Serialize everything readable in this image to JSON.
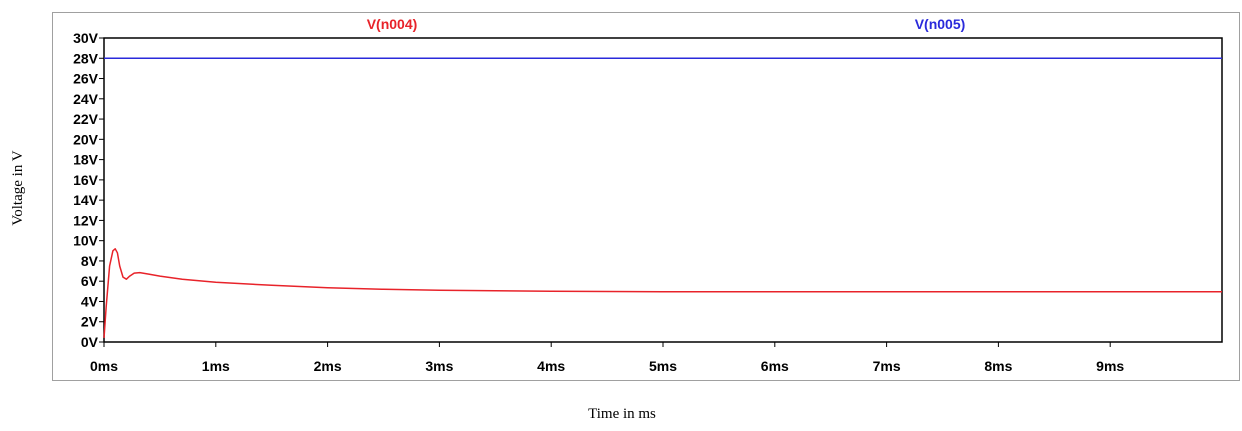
{
  "chart_data": {
    "type": "line",
    "xlabel": "Time in ms",
    "ylabel": "Voltage in V",
    "xlim": [
      0,
      10
    ],
    "ylim": [
      0,
      30
    ],
    "x_ticks": [
      {
        "value": 0,
        "label": "0ms"
      },
      {
        "value": 1,
        "label": "1ms"
      },
      {
        "value": 2,
        "label": "2ms"
      },
      {
        "value": 3,
        "label": "3ms"
      },
      {
        "value": 4,
        "label": "4ms"
      },
      {
        "value": 5,
        "label": "5ms"
      },
      {
        "value": 6,
        "label": "6ms"
      },
      {
        "value": 7,
        "label": "7ms"
      },
      {
        "value": 8,
        "label": "8ms"
      },
      {
        "value": 9,
        "label": "9ms"
      }
    ],
    "y_ticks": [
      {
        "value": 0,
        "label": "0V"
      },
      {
        "value": 2,
        "label": "2V"
      },
      {
        "value": 4,
        "label": "4V"
      },
      {
        "value": 6,
        "label": "6V"
      },
      {
        "value": 8,
        "label": "8V"
      },
      {
        "value": 10,
        "label": "10V"
      },
      {
        "value": 12,
        "label": "12V"
      },
      {
        "value": 14,
        "label": "14V"
      },
      {
        "value": 16,
        "label": "16V"
      },
      {
        "value": 18,
        "label": "18V"
      },
      {
        "value": 20,
        "label": "20V"
      },
      {
        "value": 22,
        "label": "22V"
      },
      {
        "value": 24,
        "label": "24V"
      },
      {
        "value": 26,
        "label": "26V"
      },
      {
        "value": 28,
        "label": "28V"
      },
      {
        "value": 30,
        "label": "30V"
      }
    ],
    "grid": false,
    "legend_placement": "top",
    "series": [
      {
        "name": "V(n004)",
        "color": "#e8232a",
        "x": [
          0,
          0.02,
          0.05,
          0.08,
          0.1,
          0.12,
          0.14,
          0.17,
          0.2,
          0.23,
          0.27,
          0.32,
          0.4,
          0.5,
          0.7,
          1.0,
          1.5,
          2.0,
          2.5,
          3.0,
          3.5,
          4.0,
          5.0,
          6.0,
          7.0,
          8.0,
          9.0,
          10.0
        ],
        "y": [
          0.4,
          3.5,
          7.5,
          9.0,
          9.2,
          8.8,
          7.5,
          6.4,
          6.2,
          6.5,
          6.8,
          6.85,
          6.7,
          6.5,
          6.2,
          5.9,
          5.6,
          5.35,
          5.2,
          5.1,
          5.05,
          5.0,
          4.95,
          4.95,
          4.95,
          4.95,
          4.95,
          4.95
        ]
      },
      {
        "name": "V(n005)",
        "color": "#2a2adb",
        "x": [
          0,
          10
        ],
        "y": [
          28,
          28
        ]
      }
    ]
  }
}
